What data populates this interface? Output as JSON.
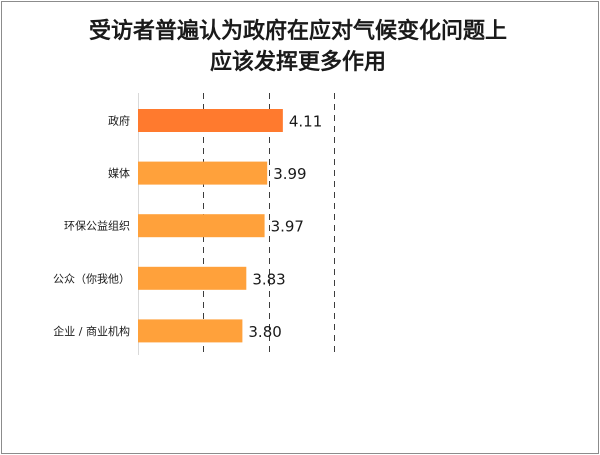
{
  "chart_data": {
    "type": "bar",
    "orientation": "horizontal",
    "title_lines": [
      "受访者普遍认为政府在应对气候变化问题上",
      "应该发挥更多作用"
    ],
    "categories": [
      "政府",
      "媒体",
      "环保公益组织",
      "公众（你我他）",
      "企业 / 商业机构"
    ],
    "values": [
      4.11,
      3.99,
      3.97,
      3.83,
      3.8
    ],
    "value_labels": [
      "4.11",
      "3.99",
      "3.97",
      "3.83",
      "3.80"
    ],
    "xlim": [
      3.0,
      4.5
    ],
    "grid": "vertical dashed",
    "legend": "none",
    "colors": [
      "#ff7a2e",
      "#ffa13b",
      "#ffa13b",
      "#ffa13b",
      "#ffa13b"
    ]
  }
}
